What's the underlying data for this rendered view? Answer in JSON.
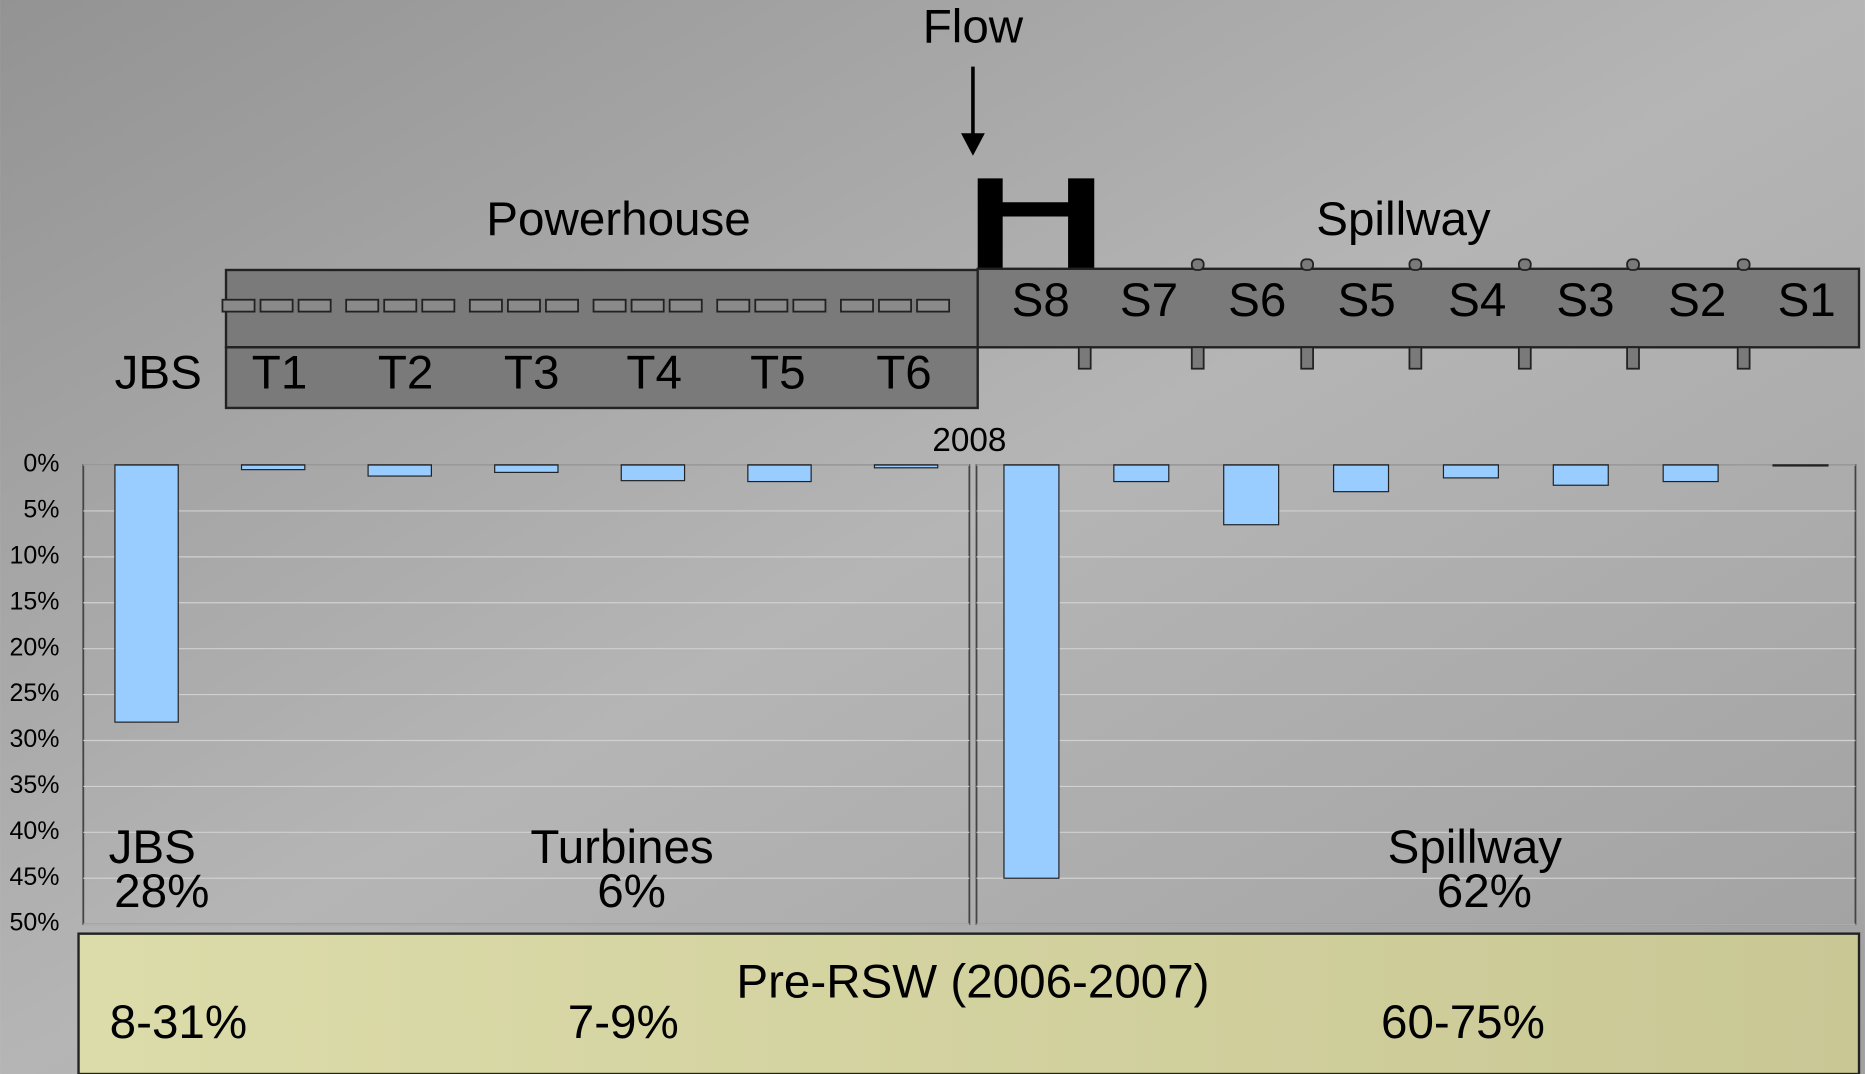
{
  "diagram": {
    "flow": "Flow",
    "powerhouse": "Powerhouse",
    "spillway": "Spillway",
    "jbs": "JBS",
    "turbines": [
      "T1",
      "T2",
      "T3",
      "T4",
      "T5",
      "T6"
    ],
    "spillbays": [
      "S8",
      "S7",
      "S6",
      "S5",
      "S4",
      "S3",
      "S2",
      "S1"
    ]
  },
  "chart_data": [
    {
      "type": "bar",
      "title": "2008",
      "values": [
        28,
        0.5,
        1.2,
        0.8,
        1.7,
        1.8,
        0.3
      ],
      "color": "#99ccff",
      "ylim": [
        0,
        50
      ],
      "inverted": true,
      "grid": true,
      "yticks": [
        {
          "value": 0,
          "label": "0%"
        },
        {
          "value": 5,
          "label": "5%"
        },
        {
          "value": 10,
          "label": "10%"
        },
        {
          "value": 15,
          "label": "15%"
        },
        {
          "value": 20,
          "label": "20%"
        },
        {
          "value": 25,
          "label": "25%"
        },
        {
          "value": 30,
          "label": "30%"
        },
        {
          "value": 35,
          "label": "35%"
        },
        {
          "value": 40,
          "label": "40%"
        },
        {
          "value": 45,
          "label": "45%"
        },
        {
          "value": 50,
          "label": "50%"
        }
      ],
      "annotations": [
        {
          "label": "JBS",
          "value": "28%"
        },
        {
          "label": "Turbines",
          "value": "6%"
        }
      ]
    },
    {
      "type": "bar",
      "values": [
        45,
        1.8,
        6.5,
        2.9,
        1.4,
        2.2,
        1.8,
        0.1
      ],
      "color": "#99ccff",
      "ylim": [
        0,
        50
      ],
      "inverted": true,
      "grid": true,
      "yticks": [
        0,
        5,
        10,
        15,
        20,
        25,
        30,
        35,
        40,
        45,
        50
      ],
      "annotations": [
        {
          "label": "Spillway",
          "value": "62%"
        }
      ]
    }
  ],
  "pre_rsw": {
    "title": "Pre-RSW (2006-2007)",
    "ranges": [
      "8-31%",
      "7-9%",
      "60-75%"
    ]
  }
}
